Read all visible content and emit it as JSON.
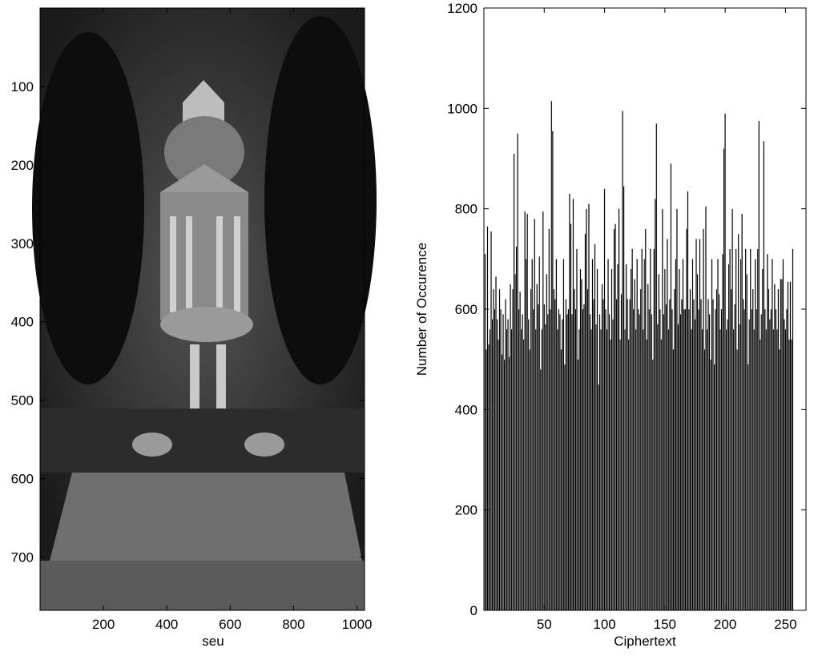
{
  "chart_data": [
    {
      "type": "image",
      "xlabel": "seu",
      "xlim": [
        0,
        1024
      ],
      "ylim": [
        0,
        768
      ],
      "xticks": [
        200,
        400,
        600,
        800,
        1000
      ],
      "yticks": [
        100,
        200,
        300,
        400,
        500,
        600,
        700
      ]
    },
    {
      "type": "histogram",
      "xlabel": "Ciphertext",
      "ylabel": "Number of Occurence",
      "color": "#000000",
      "xlim": [
        0,
        267
      ],
      "ylim": [
        0,
        1200
      ],
      "xticks": [
        50,
        100,
        150,
        200,
        250
      ],
      "yticks": [
        0,
        200,
        400,
        600,
        800,
        1000,
        1200
      ],
      "x": [
        1,
        2,
        3,
        4,
        5,
        6,
        7,
        8,
        9,
        10,
        11,
        12,
        13,
        14,
        15,
        16,
        17,
        18,
        19,
        20,
        21,
        22,
        23,
        24,
        25,
        26,
        27,
        28,
        29,
        30,
        31,
        32,
        33,
        34,
        35,
        36,
        37,
        38,
        39,
        40,
        41,
        42,
        43,
        44,
        45,
        46,
        47,
        48,
        49,
        50,
        51,
        52,
        53,
        54,
        55,
        56,
        57,
        58,
        59,
        60,
        61,
        62,
        63,
        64,
        65,
        66,
        67,
        68,
        69,
        70,
        71,
        72,
        73,
        74,
        75,
        76,
        77,
        78,
        79,
        80,
        81,
        82,
        83,
        84,
        85,
        86,
        87,
        88,
        89,
        90,
        91,
        92,
        93,
        94,
        95,
        96,
        97,
        98,
        99,
        100,
        101,
        102,
        103,
        104,
        105,
        106,
        107,
        108,
        109,
        110,
        111,
        112,
        113,
        114,
        115,
        116,
        117,
        118,
        119,
        120,
        121,
        122,
        123,
        124,
        125,
        126,
        127,
        128,
        129,
        130,
        131,
        132,
        133,
        134,
        135,
        136,
        137,
        138,
        139,
        140,
        141,
        142,
        143,
        144,
        145,
        146,
        147,
        148,
        149,
        150,
        151,
        152,
        153,
        154,
        155,
        156,
        157,
        158,
        159,
        160,
        161,
        162,
        163,
        164,
        165,
        166,
        167,
        168,
        169,
        170,
        171,
        172,
        173,
        174,
        175,
        176,
        177,
        178,
        179,
        180,
        181,
        182,
        183,
        184,
        185,
        186,
        187,
        188,
        189,
        190,
        191,
        192,
        193,
        194,
        195,
        196,
        197,
        198,
        199,
        200,
        201,
        202,
        203,
        204,
        205,
        206,
        207,
        208,
        209,
        210,
        211,
        212,
        213,
        214,
        215,
        216,
        217,
        218,
        219,
        220,
        221,
        222,
        223,
        224,
        225,
        226,
        227,
        228,
        229,
        230,
        231,
        232,
        233,
        234,
        235,
        236,
        237,
        238,
        239,
        240,
        241,
        242,
        243,
        244,
        245,
        246,
        247,
        248,
        249,
        250,
        251,
        252,
        253,
        254,
        255,
        256
      ],
      "values": [
        710,
        520,
        765,
        530,
        560,
        755,
        580,
        640,
        600,
        665,
        580,
        540,
        640,
        600,
        510,
        590,
        500,
        620,
        560,
        580,
        505,
        650,
        560,
        640,
        910,
        670,
        725,
        950,
        600,
        635,
        560,
        590,
        540,
        795,
        700,
        790,
        580,
        520,
        640,
        700,
        600,
        780,
        560,
        650,
        610,
        705,
        480,
        560,
        795,
        610,
        570,
        670,
        590,
        760,
        600,
        1015,
        955,
        640,
        620,
        700,
        560,
        600,
        590,
        520,
        580,
        700,
        490,
        620,
        590,
        600,
        830,
        770,
        590,
        820,
        640,
        600,
        720,
        500,
        560,
        680,
        660,
        600,
        610,
        750,
        800,
        640,
        810,
        590,
        560,
        700,
        620,
        730,
        570,
        680,
        450,
        590,
        560,
        650,
        620,
        840,
        600,
        560,
        700,
        590,
        540,
        680,
        580,
        760,
        770,
        620,
        690,
        800,
        540,
        630,
        995,
        845,
        560,
        690,
        620,
        540,
        620,
        680,
        720,
        600,
        660,
        560,
        700,
        600,
        590,
        640,
        720,
        560,
        700,
        760,
        540,
        650,
        600,
        720,
        590,
        500,
        720,
        820,
        970,
        570,
        670,
        600,
        540,
        800,
        590,
        680,
        610,
        740,
        560,
        620,
        890,
        600,
        520,
        640,
        700,
        800,
        570,
        680,
        590,
        620,
        700,
        600,
        600,
        760,
        835,
        600,
        640,
        560,
        700,
        620,
        580,
        740,
        670,
        600,
        740,
        620,
        560,
        760,
        520,
        805,
        560,
        620,
        590,
        500,
        700,
        620,
        490,
        600,
        640,
        700,
        630,
        560,
        600,
        710,
        920,
        990,
        560,
        580,
        690,
        720,
        640,
        800,
        560,
        610,
        720,
        520,
        750,
        570,
        700,
        790,
        620,
        600,
        720,
        670,
        490,
        580,
        720,
        600,
        640,
        560,
        700,
        600,
        720,
        975,
        540,
        590,
        680,
        935,
        600,
        560,
        710,
        640,
        580,
        600,
        700,
        560,
        650,
        600,
        560,
        640,
        520,
        660,
        660,
        700,
        580,
        560,
        600,
        655,
        540,
        655,
        540,
        720
      ]
    }
  ]
}
